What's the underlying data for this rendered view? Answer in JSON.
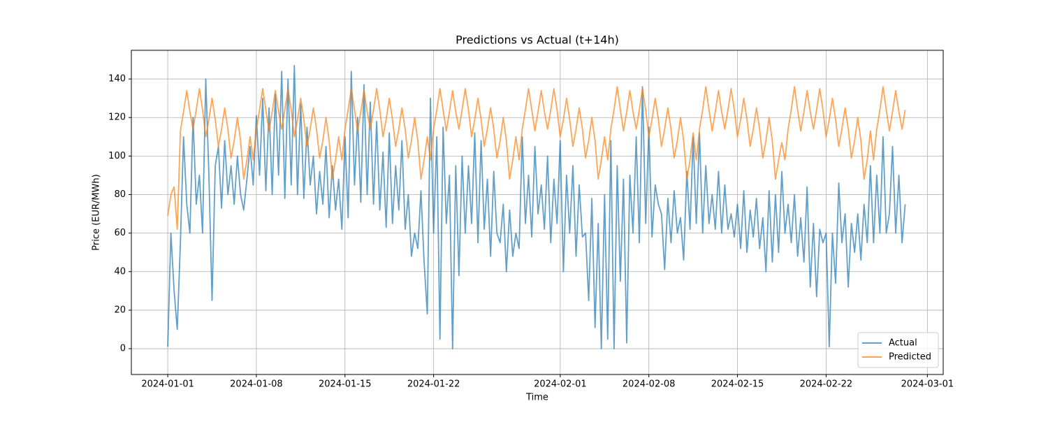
{
  "chart_data": {
    "type": "line",
    "title": "Predictions vs Actual (t+14h)",
    "x_label": "Time",
    "y_label": "Price (EUR/MWh)",
    "x": [
      "2024-01-01 00:00",
      "2024-01-01 06:00",
      "2024-01-01 12:00",
      "2024-01-01 18:00",
      "2024-01-02 00:00",
      "2024-01-02 06:00",
      "2024-01-02 12:00",
      "2024-01-02 18:00",
      "2024-01-03 00:00",
      "2024-01-03 06:00",
      "2024-01-03 12:00",
      "2024-01-03 18:00",
      "2024-01-04 00:00",
      "2024-01-04 06:00",
      "2024-01-04 12:00",
      "2024-01-04 18:00",
      "2024-01-05 00:00",
      "2024-01-05 06:00",
      "2024-01-05 12:00",
      "2024-01-05 18:00",
      "2024-01-06 00:00",
      "2024-01-06 06:00",
      "2024-01-06 12:00",
      "2024-01-06 18:00",
      "2024-01-07 00:00",
      "2024-01-07 06:00",
      "2024-01-07 12:00",
      "2024-01-07 18:00",
      "2024-01-08 00:00",
      "2024-01-08 06:00",
      "2024-01-08 12:00",
      "2024-01-08 18:00",
      "2024-01-09 00:00",
      "2024-01-09 06:00",
      "2024-01-09 12:00",
      "2024-01-09 18:00",
      "2024-01-10 00:00",
      "2024-01-10 06:00",
      "2024-01-10 12:00",
      "2024-01-10 18:00",
      "2024-01-11 00:00",
      "2024-01-11 06:00",
      "2024-01-11 12:00",
      "2024-01-11 18:00",
      "2024-01-12 00:00",
      "2024-01-12 06:00",
      "2024-01-12 12:00",
      "2024-01-12 18:00",
      "2024-01-13 00:00",
      "2024-01-13 06:00",
      "2024-01-13 12:00",
      "2024-01-13 18:00",
      "2024-01-14 00:00",
      "2024-01-14 06:00",
      "2024-01-14 12:00",
      "2024-01-14 18:00",
      "2024-01-15 00:00",
      "2024-01-15 06:00",
      "2024-01-15 12:00",
      "2024-01-15 18:00",
      "2024-01-16 00:00",
      "2024-01-16 06:00",
      "2024-01-16 12:00",
      "2024-01-16 18:00",
      "2024-01-17 00:00",
      "2024-01-17 06:00",
      "2024-01-17 12:00",
      "2024-01-17 18:00",
      "2024-01-18 00:00",
      "2024-01-18 06:00",
      "2024-01-18 12:00",
      "2024-01-18 18:00",
      "2024-01-19 00:00",
      "2024-01-19 06:00",
      "2024-01-19 12:00",
      "2024-01-19 18:00",
      "2024-01-20 00:00",
      "2024-01-20 06:00",
      "2024-01-20 12:00",
      "2024-01-20 18:00",
      "2024-01-21 00:00",
      "2024-01-21 06:00",
      "2024-01-21 12:00",
      "2024-01-21 18:00",
      "2024-01-22 00:00",
      "2024-01-22 06:00",
      "2024-01-22 12:00",
      "2024-01-22 18:00",
      "2024-01-23 00:00",
      "2024-01-23 06:00",
      "2024-01-23 12:00",
      "2024-01-23 18:00",
      "2024-01-24 00:00",
      "2024-01-24 06:00",
      "2024-01-24 12:00",
      "2024-01-24 18:00",
      "2024-01-25 00:00",
      "2024-01-25 06:00",
      "2024-01-25 12:00",
      "2024-01-25 18:00",
      "2024-01-26 00:00",
      "2024-01-26 06:00",
      "2024-01-26 12:00",
      "2024-01-26 18:00",
      "2024-01-27 00:00",
      "2024-01-27 06:00",
      "2024-01-27 12:00",
      "2024-01-27 18:00",
      "2024-01-28 00:00",
      "2024-01-28 06:00",
      "2024-01-28 12:00",
      "2024-01-28 18:00",
      "2024-01-29 00:00",
      "2024-01-29 06:00",
      "2024-01-29 12:00",
      "2024-01-29 18:00",
      "2024-01-30 00:00",
      "2024-01-30 06:00",
      "2024-01-30 12:00",
      "2024-01-30 18:00",
      "2024-01-31 00:00",
      "2024-01-31 06:00",
      "2024-01-31 12:00",
      "2024-01-31 18:00",
      "2024-02-01 00:00",
      "2024-02-01 06:00",
      "2024-02-01 12:00",
      "2024-02-01 18:00",
      "2024-02-02 00:00",
      "2024-02-02 06:00",
      "2024-02-02 12:00",
      "2024-02-02 18:00",
      "2024-02-03 00:00",
      "2024-02-03 06:00",
      "2024-02-03 12:00",
      "2024-02-03 18:00",
      "2024-02-04 00:00",
      "2024-02-04 06:00",
      "2024-02-04 12:00",
      "2024-02-04 18:00",
      "2024-02-05 00:00",
      "2024-02-05 06:00",
      "2024-02-05 12:00",
      "2024-02-05 18:00",
      "2024-02-06 00:00",
      "2024-02-06 06:00",
      "2024-02-06 12:00",
      "2024-02-06 18:00",
      "2024-02-07 00:00",
      "2024-02-07 06:00",
      "2024-02-07 12:00",
      "2024-02-07 18:00",
      "2024-02-08 00:00",
      "2024-02-08 06:00",
      "2024-02-08 12:00",
      "2024-02-08 18:00",
      "2024-02-09 00:00",
      "2024-02-09 06:00",
      "2024-02-09 12:00",
      "2024-02-09 18:00",
      "2024-02-10 00:00",
      "2024-02-10 06:00",
      "2024-02-10 12:00",
      "2024-02-10 18:00",
      "2024-02-11 00:00",
      "2024-02-11 06:00",
      "2024-02-11 12:00",
      "2024-02-11 18:00",
      "2024-02-12 00:00",
      "2024-02-12 06:00",
      "2024-02-12 12:00",
      "2024-02-12 18:00",
      "2024-02-13 00:00",
      "2024-02-13 06:00",
      "2024-02-13 12:00",
      "2024-02-13 18:00",
      "2024-02-14 00:00",
      "2024-02-14 06:00",
      "2024-02-14 12:00",
      "2024-02-14 18:00",
      "2024-02-15 00:00",
      "2024-02-15 06:00",
      "2024-02-15 12:00",
      "2024-02-15 18:00",
      "2024-02-16 00:00",
      "2024-02-16 06:00",
      "2024-02-16 12:00",
      "2024-02-16 18:00",
      "2024-02-17 00:00",
      "2024-02-17 06:00",
      "2024-02-17 12:00",
      "2024-02-17 18:00",
      "2024-02-18 00:00",
      "2024-02-18 06:00",
      "2024-02-18 12:00",
      "2024-02-18 18:00",
      "2024-02-19 00:00",
      "2024-02-19 06:00",
      "2024-02-19 12:00",
      "2024-02-19 18:00",
      "2024-02-20 00:00",
      "2024-02-20 06:00",
      "2024-02-20 12:00",
      "2024-02-20 18:00",
      "2024-02-21 00:00",
      "2024-02-21 06:00",
      "2024-02-21 12:00",
      "2024-02-21 18:00",
      "2024-02-22 00:00",
      "2024-02-22 06:00",
      "2024-02-22 12:00",
      "2024-02-22 18:00",
      "2024-02-23 00:00",
      "2024-02-23 06:00",
      "2024-02-23 12:00",
      "2024-02-23 18:00",
      "2024-02-24 00:00",
      "2024-02-24 06:00",
      "2024-02-24 12:00",
      "2024-02-24 18:00",
      "2024-02-25 00:00",
      "2024-02-25 06:00",
      "2024-02-25 12:00",
      "2024-02-25 18:00",
      "2024-02-26 00:00",
      "2024-02-26 06:00",
      "2024-02-26 12:00",
      "2024-02-26 18:00",
      "2024-02-27 00:00",
      "2024-02-27 06:00",
      "2024-02-27 12:00",
      "2024-02-27 18:00",
      "2024-02-28 00:00",
      "2024-02-28 06:00"
    ],
    "series": [
      {
        "name": "Actual",
        "color": "#1f77b4",
        "values": [
          1,
          60,
          30,
          10,
          55,
          110,
          75,
          60,
          120,
          75,
          90,
          60,
          140,
          90,
          25,
          95,
          105,
          73,
          108,
          80,
          95,
          75,
          100,
          80,
          72,
          88,
          105,
          85,
          121,
          90,
          130,
          82,
          125,
          80,
          132,
          90,
          144,
          78,
          140,
          85,
          147,
          80,
          127,
          78,
          115,
          85,
          100,
          70,
          92,
          75,
          105,
          68,
          95,
          72,
          88,
          62,
          110,
          68,
          144,
          85,
          120,
          76,
          137,
          80,
          128,
          75,
          118,
          72,
          102,
          63,
          112,
          65,
          95,
          72,
          108,
          62,
          80,
          48,
          60,
          52,
          82,
          45,
          18,
          130,
          60,
          110,
          5,
          115,
          65,
          90,
          0,
          95,
          38,
          100,
          60,
          95,
          65,
          112,
          55,
          108,
          62,
          88,
          48,
          92,
          60,
          55,
          75,
          40,
          72,
          48,
          60,
          52,
          110,
          65,
          90,
          58,
          105,
          70,
          85,
          62,
          100,
          55,
          88,
          65,
          108,
          40,
          90,
          60,
          95,
          48,
          85,
          58,
          60,
          25,
          78,
          11,
          65,
          0,
          80,
          5,
          108,
          0,
          95,
          35,
          88,
          3,
          90,
          60,
          110,
          55,
          136,
          65,
          115,
          58,
          85,
          75,
          70,
          41,
          78,
          55,
          82,
          60,
          68,
          46,
          92,
          62,
          110,
          65,
          112,
          60,
          95,
          65,
          80,
          62,
          92,
          60,
          85,
          62,
          70,
          58,
          75,
          52,
          82,
          50,
          72,
          58,
          78,
          52,
          68,
          40,
          82,
          45,
          80,
          50,
          92,
          60,
          75,
          55,
          80,
          48,
          68,
          45,
          84,
          32,
          65,
          27,
          62,
          55,
          60,
          1,
          60,
          34,
          86,
          55,
          70,
          32,
          65,
          50,
          70,
          46,
          75,
          55,
          95,
          55,
          90,
          60,
          110,
          60,
          70,
          105,
          60,
          90,
          55,
          75
        ]
      },
      {
        "name": "Predicted",
        "color": "#ff7f0e",
        "values": [
          69,
          80,
          84,
          62,
          113,
          123,
          134,
          123,
          114,
          124,
          135,
          124,
          110,
          119,
          130,
          119,
          105,
          114,
          125,
          114,
          99,
          108,
          120,
          108,
          88,
          98,
          110,
          98,
          114,
          124,
          135,
          124,
          113,
          123,
          134,
          123,
          114,
          124,
          135,
          124,
          110,
          119,
          130,
          119,
          105,
          114,
          125,
          114,
          99,
          108,
          120,
          108,
          88,
          98,
          110,
          98,
          114,
          124,
          135,
          124,
          113,
          123,
          134,
          123,
          114,
          124,
          135,
          124,
          110,
          119,
          130,
          119,
          105,
          114,
          125,
          114,
          99,
          108,
          120,
          108,
          88,
          98,
          110,
          98,
          114,
          124,
          135,
          124,
          113,
          123,
          134,
          123,
          114,
          124,
          135,
          124,
          110,
          119,
          130,
          119,
          105,
          114,
          125,
          114,
          99,
          108,
          120,
          108,
          88,
          98,
          110,
          98,
          114,
          124,
          135,
          124,
          113,
          123,
          134,
          123,
          114,
          124,
          135,
          124,
          110,
          119,
          130,
          119,
          105,
          114,
          125,
          114,
          99,
          108,
          120,
          108,
          88,
          98,
          110,
          98,
          114,
          124,
          136,
          124,
          113,
          123,
          134,
          123,
          114,
          124,
          135,
          124,
          110,
          119,
          130,
          119,
          105,
          114,
          125,
          114,
          99,
          108,
          120,
          108,
          88,
          98,
          112,
          98,
          114,
          124,
          136,
          124,
          113,
          123,
          134,
          123,
          114,
          124,
          135,
          124,
          110,
          119,
          130,
          119,
          105,
          114,
          125,
          114,
          99,
          108,
          120,
          108,
          88,
          98,
          107,
          98,
          114,
          124,
          136,
          124,
          113,
          123,
          134,
          123,
          114,
          124,
          135,
          124,
          110,
          119,
          130,
          119,
          105,
          114,
          125,
          114,
          99,
          108,
          120,
          108,
          88,
          98,
          113,
          98,
          114,
          124,
          136,
          124,
          113,
          123,
          134,
          123,
          114,
          124
        ]
      }
    ],
    "xlim": [
      "2023-12-29 03:00",
      "2024-03-02 06:00"
    ],
    "xticks": [
      "2024-01-01",
      "2024-01-08",
      "2024-01-15",
      "2024-01-22",
      "2024-02-01",
      "2024-02-08",
      "2024-02-15",
      "2024-02-22",
      "2024-03-01"
    ],
    "ylim": [
      -13.4,
      154.9
    ],
    "yticks": [
      0,
      20,
      40,
      60,
      80,
      100,
      120,
      140
    ],
    "grid": true,
    "legend": "lower right"
  }
}
